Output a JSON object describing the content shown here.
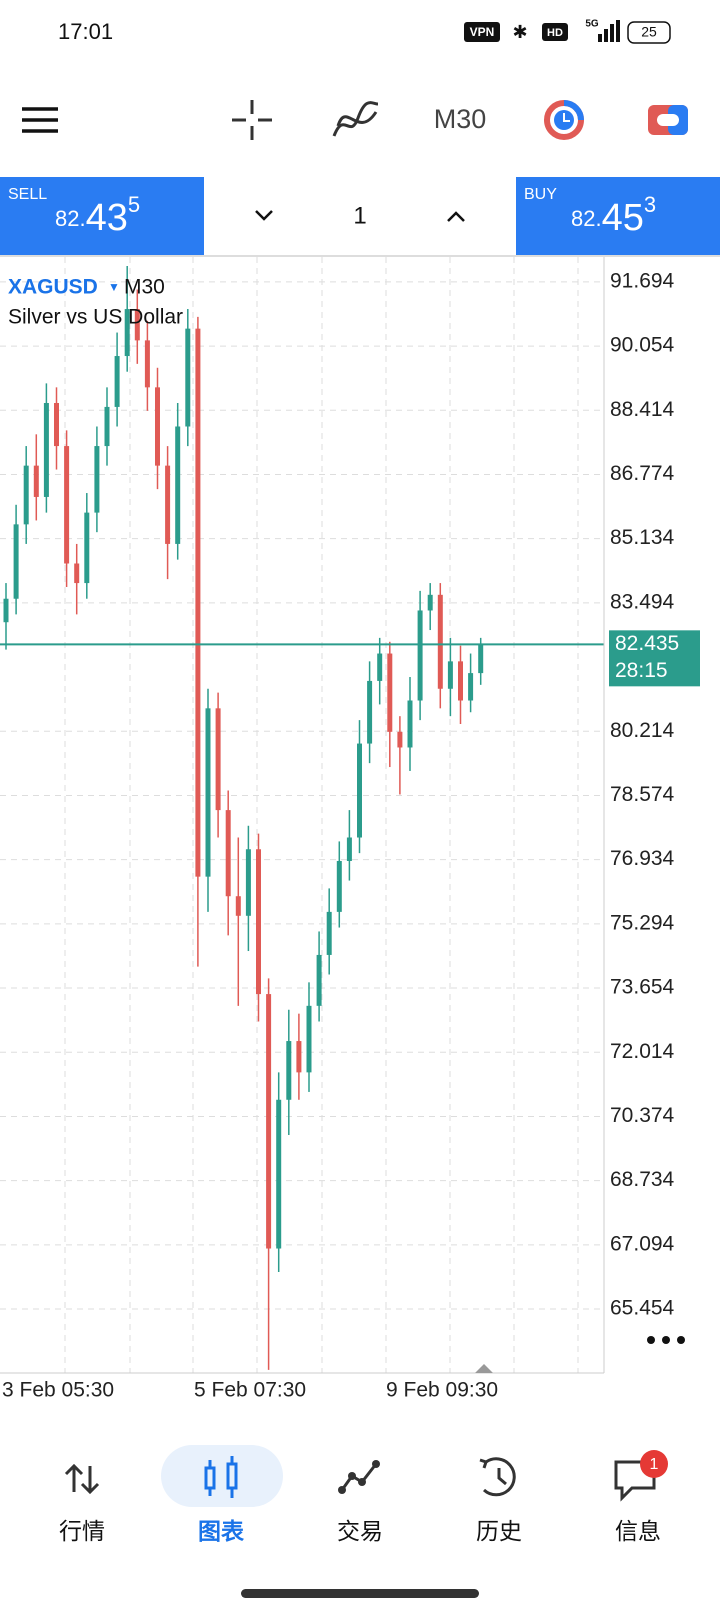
{
  "status_bar": {
    "time": "17:01",
    "vpn": "VPN",
    "hd": "HD",
    "network": "5G",
    "battery": "25"
  },
  "toolbar": {
    "timeframe": "M30"
  },
  "trade_panel": {
    "sell": {
      "label": "SELL",
      "prefix": "82.",
      "big": "43",
      "small": "5"
    },
    "volume": "1",
    "buy": {
      "label": "BUY",
      "prefix": "82.",
      "big": "45",
      "small": "3"
    }
  },
  "chart_data": {
    "type": "candlestick",
    "symbol": "XAGUSD",
    "timeframe": "M30",
    "description": "Silver vs US Dollar",
    "up_color": "#2b9c8c",
    "down_color": "#e05a55",
    "grid": true,
    "open": [
      83.0,
      83.6,
      85.5,
      87.0,
      86.2,
      88.6,
      87.5,
      84.5,
      84.0,
      85.8,
      87.5,
      88.5,
      89.8,
      91.0,
      90.2,
      89.0,
      87.0,
      85.0,
      88.0,
      90.5,
      76.5,
      80.8,
      78.2,
      76.0,
      75.5,
      77.2,
      73.5,
      67.0,
      70.8,
      72.3,
      71.5,
      73.2,
      74.5,
      75.6,
      76.9,
      77.5,
      79.9,
      81.5,
      82.2,
      80.2,
      79.8,
      81.0,
      83.3,
      83.7,
      81.3,
      82.0,
      81.0,
      81.7
    ],
    "high": [
      84.0,
      86.0,
      87.5,
      87.8,
      89.1,
      89.0,
      87.9,
      85.0,
      86.3,
      88.0,
      89.0,
      90.4,
      92.1,
      91.5,
      90.7,
      89.5,
      87.5,
      88.6,
      91.0,
      90.8,
      81.3,
      81.2,
      78.7,
      77.5,
      77.8,
      77.6,
      73.9,
      71.5,
      73.1,
      73.0,
      73.8,
      75.1,
      76.2,
      77.4,
      78.2,
      80.5,
      82.0,
      82.6,
      82.5,
      80.6,
      81.6,
      83.8,
      84.0,
      84.0,
      82.6,
      82.4,
      82.2,
      82.6
    ],
    "low": [
      82.3,
      83.2,
      85.0,
      85.6,
      85.8,
      86.9,
      83.9,
      83.2,
      83.6,
      85.3,
      87.0,
      88.0,
      89.4,
      89.6,
      88.4,
      86.4,
      84.1,
      84.6,
      87.5,
      74.2,
      75.6,
      77.5,
      75.0,
      73.2,
      74.6,
      72.8,
      63.9,
      66.4,
      69.9,
      70.8,
      71.0,
      72.8,
      74.0,
      75.2,
      76.4,
      77.1,
      79.4,
      80.9,
      79.3,
      78.6,
      79.2,
      80.5,
      82.8,
      80.8,
      80.6,
      80.4,
      80.7,
      81.4
    ],
    "close": [
      83.6,
      85.5,
      87.0,
      86.2,
      88.6,
      87.5,
      84.5,
      84.0,
      85.8,
      87.5,
      88.5,
      89.8,
      91.0,
      90.2,
      89.0,
      87.0,
      85.0,
      88.0,
      90.5,
      76.5,
      80.8,
      78.2,
      76.0,
      75.5,
      77.2,
      73.5,
      67.0,
      70.8,
      72.3,
      71.5,
      73.2,
      74.5,
      75.6,
      76.9,
      77.5,
      79.9,
      81.5,
      82.2,
      80.2,
      79.8,
      81.0,
      83.3,
      83.7,
      81.3,
      82.0,
      81.0,
      81.7,
      82.435
    ],
    "ylim": [
      63.82,
      92.33
    ],
    "yticks": [
      91.694,
      90.054,
      88.414,
      86.774,
      85.134,
      83.494,
      80.214,
      78.574,
      76.934,
      75.294,
      73.654,
      72.014,
      70.374,
      68.734,
      67.094,
      65.454
    ],
    "x_labels": [
      "3 Feb 05:30",
      "5 Feb 07:30",
      "9 Feb 09:30"
    ],
    "current_price": 82.435,
    "price_line_color": "#2b9c8c",
    "countdown": "28:15"
  },
  "nav": {
    "items": [
      "行情",
      "图表",
      "交易",
      "历史",
      "信息"
    ],
    "badge": "1"
  }
}
